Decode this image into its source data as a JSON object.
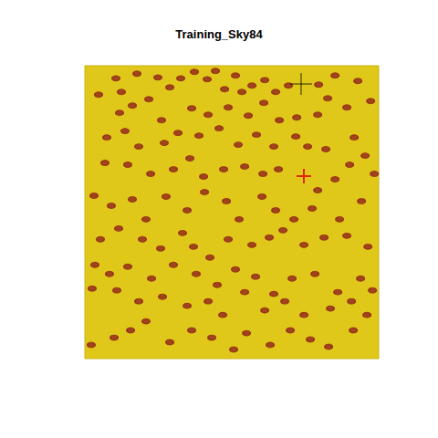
{
  "chart_data": {
    "type": "scatter",
    "title": "Training_Sky84",
    "xlim": [
      0,
      4200
    ],
    "ylim": [
      0,
      4200
    ],
    "tick_labels": false,
    "grid": false,
    "series": [
      {
        "type": "scatter",
        "marker": "ellipse",
        "color": "#8b1a1a",
        "x": [
          444,
          522,
          744,
          1044,
          1214,
          1370,
          1566,
          1749,
          1866,
          1997,
          2153,
          2245,
          2388,
          2571,
          2727,
          2910,
          3341,
          3576,
          3902,
          196,
          496,
          679,
          914,
          1096,
          1527,
          1762,
          2049,
          2336,
          2558,
          2780,
          3028,
          3328,
          3471,
          3745,
          4085,
          313,
          574,
          770,
          1135,
          1331,
          1631,
          1918,
          2192,
          2453,
          2701,
          3015,
          3184,
          3445,
          3850,
          4006,
          287,
          613,
          940,
          1266,
          1501,
          1697,
          1984,
          2284,
          2545,
          2767,
          3328,
          3576,
          3785,
          4137,
          131,
          378,
          679,
          874,
          1161,
          1462,
          1710,
          2023,
          2205,
          2532,
          2727,
          2988,
          3249,
          3641,
          3954,
          222,
          483,
          822,
          1083,
          1396,
          1553,
          1788,
          2049,
          2388,
          2636,
          2832,
          3132,
          3419,
          3745,
          4046,
          144,
          352,
          613,
          953,
          1266,
          1592,
          1892,
          2153,
          2440,
          2701,
          2962,
          3289,
          3615,
          3941,
          104,
          457,
          770,
          1109,
          1462,
          1762,
          1971,
          2284,
          2571,
          2858,
          3132,
          3510,
          3811,
          4111,
          91,
          418,
          653,
          874,
          1214,
          1527,
          1814,
          2127,
          2310,
          2649,
          2936,
          3223,
          3484,
          3837,
          4032
        ],
        "values": [
          4019,
          3824,
          4085,
          4032,
          3889,
          4019,
          4111,
          4006,
          4124,
          3863,
          4059,
          3824,
          3915,
          3993,
          3824,
          3915,
          3928,
          4059,
          3980,
          3785,
          3524,
          3628,
          3719,
          3419,
          3589,
          3497,
          3602,
          3484,
          3667,
          3419,
          3458,
          3497,
          3732,
          3602,
          3693,
          3171,
          3263,
          3041,
          3093,
          3236,
          3197,
          3302,
          3067,
          3210,
          3041,
          3184,
          3041,
          3002,
          3171,
          2910,
          2806,
          2780,
          2649,
          2714,
          2871,
          2610,
          2714,
          2754,
          2649,
          2714,
          2414,
          2571,
          2780,
          2649,
          2336,
          2192,
          2284,
          1997,
          2323,
          2127,
          2388,
          2258,
          1997,
          2323,
          2127,
          1997,
          2153,
          1997,
          2258,
          1710,
          1866,
          1710,
          1579,
          1801,
          1605,
          1449,
          1710,
          1631,
          1736,
          1840,
          1631,
          1736,
          1762,
          1605,
          1344,
          1214,
          1318,
          1148,
          1344,
          1214,
          1057,
          1279,
          1175,
          927,
          1148,
          1214,
          953,
          1148,
          1005,
          979,
          822,
          887,
          757,
          822,
          626,
          953,
          692,
          822,
          626,
          718,
          822,
          979,
          196,
          300,
          405,
          535,
          235,
          405,
          300,
          131,
          365,
          196,
          405,
          274,
          170,
          405,
          626
        ]
      },
      {
        "type": "scatter",
        "marker": "cross",
        "color": "#000000",
        "x": [
          3091
        ],
        "values": [
          3938
        ]
      },
      {
        "type": "scatter",
        "marker": "cross",
        "color": "#e00000",
        "x": [
          3130
        ],
        "values": [
          2617
        ]
      }
    ]
  }
}
